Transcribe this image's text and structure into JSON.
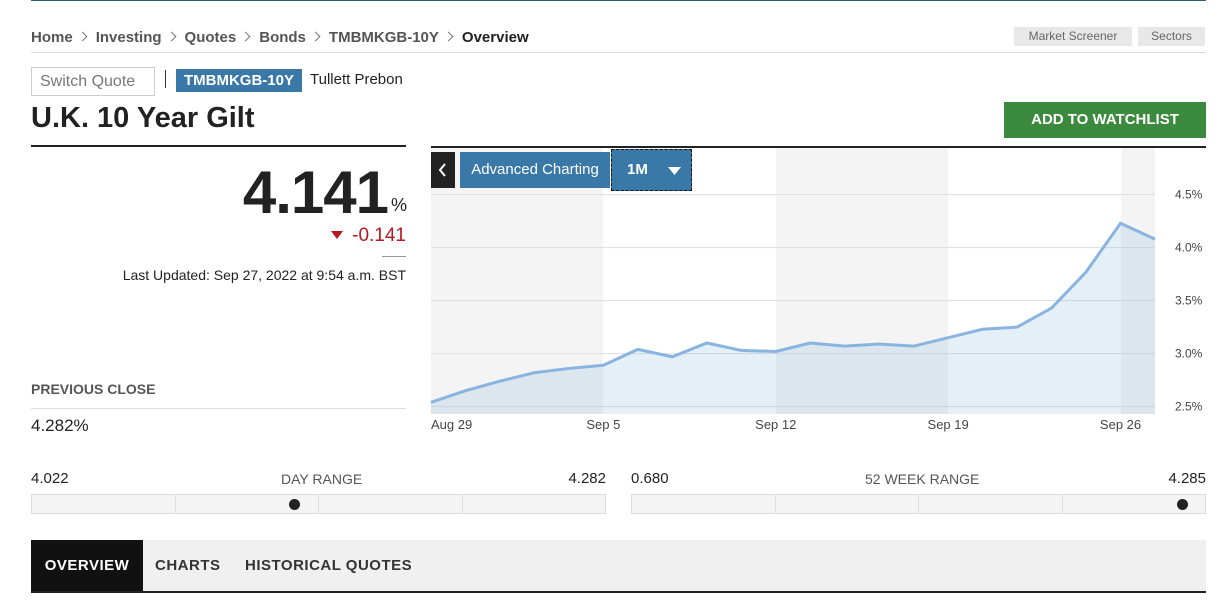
{
  "breadcrumb": [
    "Home",
    "Investing",
    "Quotes",
    "Bonds",
    "TMBMKGB-10Y",
    "Overview"
  ],
  "header_buttons": [
    "Market Screener",
    "Sectors"
  ],
  "quote": {
    "switch_quote": "Switch Quote",
    "ticker": "TMBMKGB-10Y",
    "source": "Tullett Prebon",
    "name": "U.K. 10 Year Gilt",
    "watchlist_button": "ADD TO WATCHLIST",
    "price": "4.141",
    "unit": "%",
    "change": "-0.141",
    "last_updated": "Last Updated: Sep 27, 2022 at 9:54 a.m. BST",
    "previous_close_label": "PREVIOUS CLOSE",
    "previous_close": "4.282%"
  },
  "day_range": {
    "low": "4.022",
    "label": "DAY RANGE",
    "high": "4.282"
  },
  "week52_range": {
    "low": "0.680",
    "label": "52 WEEK RANGE",
    "high": "4.285"
  },
  "chart_controls": {
    "advanced": "Advanced Charting",
    "period": "1M"
  },
  "tabs": [
    "OVERVIEW",
    "CHARTS",
    "HISTORICAL QUOTES"
  ],
  "chart_data": {
    "type": "area",
    "color": "#8ab4e0",
    "categories": [
      "Aug 29",
      null,
      null,
      null,
      null,
      "Sep 5",
      null,
      null,
      null,
      null,
      "Sep 12",
      null,
      null,
      null,
      null,
      "Sep 19",
      null,
      null,
      null,
      null,
      "Sep 26",
      null
    ],
    "values": [
      2.54,
      2.65,
      2.74,
      2.82,
      2.86,
      2.89,
      3.04,
      2.97,
      3.1,
      3.03,
      3.02,
      3.1,
      3.07,
      3.09,
      3.07,
      3.15,
      3.23,
      3.25,
      3.43,
      3.77,
      4.23,
      4.08
    ],
    "ylim": [
      2.43,
      4.94
    ],
    "yticks": [
      {
        "value": 2.5,
        "label": "2.5%"
      },
      {
        "value": 3.0,
        "label": "3.0%"
      },
      {
        "value": 3.5,
        "label": "3.5%"
      },
      {
        "value": 4.0,
        "label": "4.0%"
      },
      {
        "value": 4.5,
        "label": "4.5%"
      }
    ],
    "grid": true
  }
}
